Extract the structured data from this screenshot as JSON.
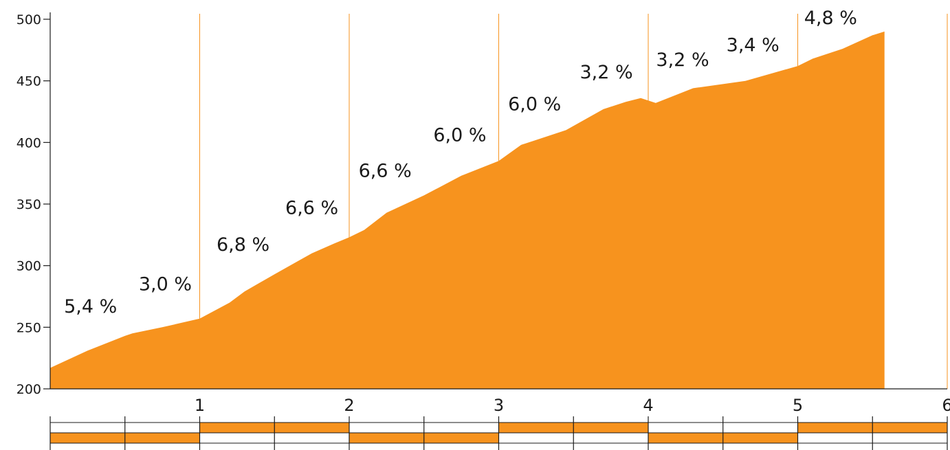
{
  "chart_data": {
    "type": "area",
    "title": "",
    "xlabel": "",
    "ylabel": "",
    "xlim": [
      0,
      6
    ],
    "ylim": [
      200,
      500
    ],
    "x_ticks": [
      1,
      2,
      3,
      4,
      5,
      6
    ],
    "y_ticks": [
      200,
      250,
      300,
      350,
      400,
      450,
      500
    ],
    "vertical_gridlines_at": [
      1,
      2,
      3,
      4,
      5,
      6
    ],
    "color": "#F7931E",
    "gridline_color": "#F7931E",
    "series": [
      {
        "x": [
          0,
          0.25,
          0.5,
          0.55,
          0.75,
          1.0,
          1.2,
          1.3,
          1.5,
          1.75,
          1.9,
          2.0,
          2.1,
          2.25,
          2.5,
          2.75,
          3.0,
          3.15,
          3.25,
          3.45,
          3.7,
          3.85,
          3.95,
          4.05,
          4.3,
          4.65,
          5.0,
          5.1,
          5.3,
          5.5,
          5.58
        ],
        "y": [
          217,
          231,
          243,
          245,
          250,
          257,
          270,
          279,
          293,
          310,
          318,
          323,
          329,
          343,
          357,
          373,
          385,
          398,
          402,
          410,
          427,
          433,
          436,
          432,
          444,
          450,
          462,
          468,
          476,
          487,
          490
        ]
      }
    ],
    "annotations": [
      {
        "text": "5,4 %",
        "x": 0.27,
        "y": 262
      },
      {
        "text": "3,0 %",
        "x": 0.77,
        "y": 280
      },
      {
        "text": "6,8 %",
        "x": 1.29,
        "y": 312
      },
      {
        "text": "6,6 %",
        "x": 1.75,
        "y": 342
      },
      {
        "text": "6,6 %",
        "x": 2.24,
        "y": 372
      },
      {
        "text": "6,0 %",
        "x": 2.74,
        "y": 401
      },
      {
        "text": "6,0 %",
        "x": 3.24,
        "y": 426
      },
      {
        "text": "3,2 %",
        "x": 3.72,
        "y": 452
      },
      {
        "text": "3,2 %",
        "x": 4.23,
        "y": 462
      },
      {
        "text": "3,4 %",
        "x": 4.7,
        "y": 474
      },
      {
        "text": "4,8 %",
        "x": 5.22,
        "y": 496
      }
    ],
    "scale_bar": {
      "segment_km": 0.5,
      "segments": 12,
      "top_row_filled": [
        2,
        3,
        6,
        7,
        10,
        11
      ],
      "bottom_row_filled": [
        0,
        1,
        4,
        5,
        8,
        9
      ]
    }
  }
}
